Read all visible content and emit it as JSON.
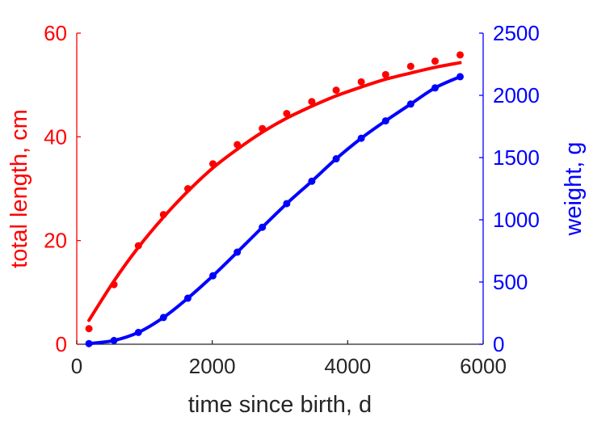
{
  "chart_data": {
    "type": "line",
    "xlabel": "time since birth, d",
    "ylabel_left": "total length, cm",
    "ylabel_right": "weight, g",
    "xlim": [
      0,
      6000
    ],
    "ylim_left": [
      0,
      60
    ],
    "ylim_right": [
      0,
      2500
    ],
    "x_ticks": [
      0,
      2000,
      4000,
      6000
    ],
    "y_left_ticks": [
      0,
      20,
      40,
      60
    ],
    "y_right_ticks": [
      0,
      500,
      1000,
      1500,
      2000,
      2500
    ],
    "grid": false,
    "colors": {
      "length": "#ff0000",
      "weight": "#0000ff",
      "axis": "#262626"
    },
    "series": [
      {
        "axis": "left",
        "color": "#ff0000",
        "observed": {
          "x": [
            180,
            550,
            910,
            1280,
            1640,
            2010,
            2370,
            2740,
            3100,
            3470,
            3830,
            4200,
            4560,
            4930,
            5290,
            5660
          ],
          "y": [
            3.0,
            11.5,
            19.0,
            25.0,
            30.0,
            34.8,
            38.5,
            41.6,
            44.5,
            46.8,
            49.0,
            50.6,
            52.0,
            53.6,
            54.6,
            55.8
          ]
        },
        "fit": {
          "x": [
            180,
            550,
            910,
            1280,
            1640,
            2010,
            2370,
            2740,
            3100,
            3470,
            3830,
            4200,
            4560,
            4930,
            5290,
            5660
          ],
          "y": [
            4.6,
            12.2,
            18.7,
            24.5,
            29.5,
            34.0,
            37.6,
            40.9,
            43.6,
            45.9,
            47.9,
            49.6,
            51.1,
            52.3,
            53.4,
            54.3
          ]
        }
      },
      {
        "axis": "right",
        "color": "#0000ff",
        "observed": {
          "x": [
            180,
            550,
            910,
            1280,
            1640,
            2010,
            2370,
            2740,
            3100,
            3470,
            3830,
            4200,
            4560,
            4930,
            5290,
            5660
          ],
          "y": [
            5,
            30,
            95,
            215,
            370,
            550,
            740,
            940,
            1130,
            1310,
            1490,
            1655,
            1795,
            1930,
            2060,
            2150
          ]
        },
        "fit": {
          "x": [
            180,
            550,
            910,
            1280,
            1640,
            2010,
            2370,
            2740,
            3100,
            3470,
            3830,
            4200,
            4560,
            4930,
            5290,
            5660
          ],
          "y": [
            5,
            30,
            95,
            215,
            370,
            550,
            740,
            940,
            1130,
            1310,
            1490,
            1655,
            1795,
            1930,
            2060,
            2150
          ]
        }
      }
    ]
  }
}
